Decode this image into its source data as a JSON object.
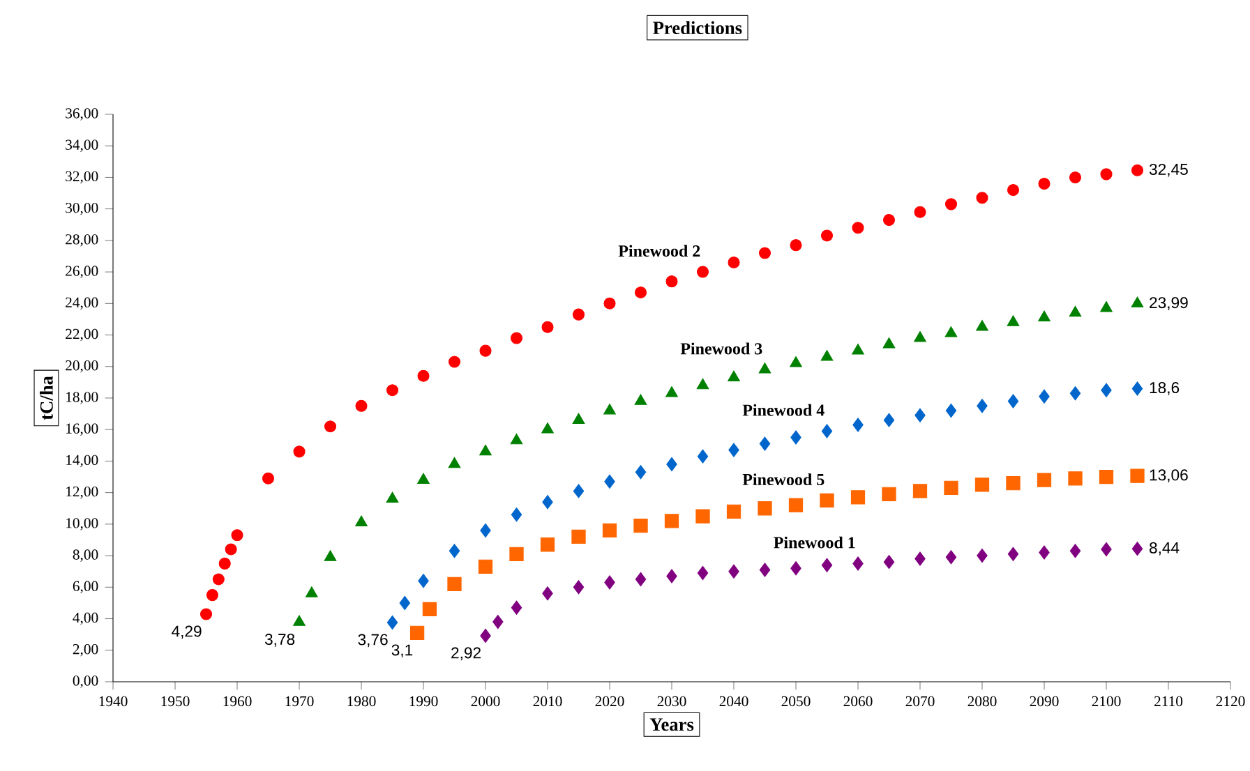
{
  "chart_data": {
    "type": "scatter",
    "title": "Predictions",
    "xlabel": "Years",
    "ylabel": "tC/ha",
    "xlim": [
      1940,
      2120
    ],
    "xticks": [
      1940,
      1950,
      1960,
      1970,
      1980,
      1990,
      2000,
      2010,
      2020,
      2030,
      2040,
      2050,
      2060,
      2070,
      2080,
      2090,
      2100,
      2110,
      2120
    ],
    "ylim": [
      0,
      36
    ],
    "yticks": [
      {
        "value": 0,
        "label": "0,00"
      },
      {
        "value": 2,
        "label": "2,00"
      },
      {
        "value": 4,
        "label": "4,00"
      },
      {
        "value": 6,
        "label": "6,00"
      },
      {
        "value": 8,
        "label": "8,00"
      },
      {
        "value": 10,
        "label": "10,00"
      },
      {
        "value": 12,
        "label": "12,00"
      },
      {
        "value": 14,
        "label": "14,00"
      },
      {
        "value": 16,
        "label": "16,00"
      },
      {
        "value": 18,
        "label": "18,00"
      },
      {
        "value": 20,
        "label": "20,00"
      },
      {
        "value": 22,
        "label": "22,00"
      },
      {
        "value": 24,
        "label": "24,00"
      },
      {
        "value": 26,
        "label": "26,00"
      },
      {
        "value": 28,
        "label": "28,00"
      },
      {
        "value": 30,
        "label": "30,00"
      },
      {
        "value": 32,
        "label": "32,00"
      },
      {
        "value": 34,
        "label": "34,00"
      },
      {
        "value": 36,
        "label": "36,00"
      }
    ],
    "grid": false,
    "legend": false,
    "series": [
      {
        "name": "Pinewood 2",
        "color": "#ff0000",
        "marker": "circle",
        "x": [
          1955,
          1956,
          1957,
          1958,
          1959,
          1960,
          1965,
          1970,
          1975,
          1980,
          1985,
          1990,
          1995,
          2000,
          2005,
          2010,
          2015,
          2020,
          2025,
          2030,
          2035,
          2040,
          2045,
          2050,
          2055,
          2060,
          2065,
          2070,
          2075,
          2080,
          2085,
          2090,
          2095,
          2100,
          2105
        ],
        "values": [
          4.29,
          5.5,
          6.5,
          7.5,
          8.4,
          9.3,
          12.9,
          14.6,
          16.2,
          17.5,
          18.5,
          19.4,
          20.3,
          21.0,
          21.8,
          22.5,
          23.3,
          24.0,
          24.7,
          25.4,
          26.0,
          26.6,
          27.2,
          27.7,
          28.3,
          28.8,
          29.3,
          29.8,
          30.3,
          30.7,
          31.2,
          31.6,
          32.0,
          32.2,
          32.45
        ],
        "value_labels": [
          "4,29",
          null,
          null,
          null,
          null,
          null,
          null,
          null,
          null,
          null,
          null,
          null,
          null,
          null,
          null,
          null,
          null,
          null,
          null,
          null,
          null,
          null,
          null,
          null,
          null,
          null,
          null,
          null,
          null,
          null,
          null,
          null,
          null,
          null,
          "32,45"
        ]
      },
      {
        "name": "Pinewood 3",
        "color": "#008000",
        "marker": "triangle",
        "x": [
          1970,
          1972,
          1975,
          1980,
          1985,
          1990,
          1995,
          2000,
          2005,
          2010,
          2015,
          2020,
          2025,
          2030,
          2035,
          2040,
          2045,
          2050,
          2055,
          2060,
          2065,
          2070,
          2075,
          2080,
          2085,
          2090,
          2095,
          2100,
          2105
        ],
        "values": [
          3.78,
          5.6,
          7.9,
          10.1,
          11.6,
          12.8,
          13.8,
          14.6,
          15.3,
          16.0,
          16.6,
          17.2,
          17.8,
          18.3,
          18.8,
          19.3,
          19.8,
          20.2,
          20.6,
          21.0,
          21.4,
          21.8,
          22.1,
          22.5,
          22.8,
          23.1,
          23.4,
          23.7,
          23.99
        ],
        "value_labels": [
          "3,78",
          null,
          null,
          null,
          null,
          null,
          null,
          null,
          null,
          null,
          null,
          null,
          null,
          null,
          null,
          null,
          null,
          null,
          null,
          null,
          null,
          null,
          null,
          null,
          null,
          null,
          null,
          null,
          "23,99"
        ]
      },
      {
        "name": "Pinewood 4",
        "color": "#0066cc",
        "marker": "diamond",
        "x": [
          1985,
          1987,
          1990,
          1995,
          2000,
          2005,
          2010,
          2015,
          2020,
          2025,
          2030,
          2035,
          2040,
          2045,
          2050,
          2055,
          2060,
          2065,
          2070,
          2075,
          2080,
          2085,
          2090,
          2095,
          2100,
          2105
        ],
        "values": [
          3.76,
          5.0,
          6.4,
          8.3,
          9.6,
          10.6,
          11.4,
          12.1,
          12.7,
          13.3,
          13.8,
          14.3,
          14.7,
          15.1,
          15.5,
          15.9,
          16.3,
          16.6,
          16.9,
          17.2,
          17.5,
          17.8,
          18.1,
          18.3,
          18.5,
          18.6
        ],
        "value_labels": [
          "3,76",
          null,
          null,
          null,
          null,
          null,
          null,
          null,
          null,
          null,
          null,
          null,
          null,
          null,
          null,
          null,
          null,
          null,
          null,
          null,
          null,
          null,
          null,
          null,
          null,
          "18,6"
        ]
      },
      {
        "name": "Pinewood 5",
        "color": "#ff6600",
        "marker": "square",
        "x": [
          1989,
          1991,
          1995,
          2000,
          2005,
          2010,
          2015,
          2020,
          2025,
          2030,
          2035,
          2040,
          2045,
          2050,
          2055,
          2060,
          2065,
          2070,
          2075,
          2080,
          2085,
          2090,
          2095,
          2100,
          2105
        ],
        "values": [
          3.1,
          4.6,
          6.2,
          7.3,
          8.1,
          8.7,
          9.2,
          9.6,
          9.9,
          10.2,
          10.5,
          10.8,
          11.0,
          11.2,
          11.5,
          11.7,
          11.9,
          12.1,
          12.3,
          12.5,
          12.6,
          12.8,
          12.9,
          13.0,
          13.06
        ],
        "value_labels": [
          "3,1",
          null,
          null,
          null,
          null,
          null,
          null,
          null,
          null,
          null,
          null,
          null,
          null,
          null,
          null,
          null,
          null,
          null,
          null,
          null,
          null,
          null,
          null,
          null,
          "13,06"
        ]
      },
      {
        "name": "Pinewood 1",
        "color": "#800080",
        "marker": "diamond",
        "x": [
          2000,
          2002,
          2005,
          2010,
          2015,
          2020,
          2025,
          2030,
          2035,
          2040,
          2045,
          2050,
          2055,
          2060,
          2065,
          2070,
          2075,
          2080,
          2085,
          2090,
          2095,
          2100,
          2105
        ],
        "values": [
          2.92,
          3.8,
          4.7,
          5.6,
          6.0,
          6.3,
          6.5,
          6.7,
          6.9,
          7.0,
          7.1,
          7.2,
          7.4,
          7.5,
          7.6,
          7.8,
          7.9,
          8.0,
          8.1,
          8.2,
          8.3,
          8.4,
          8.44
        ],
        "value_labels": [
          "2,92",
          null,
          null,
          null,
          null,
          null,
          null,
          null,
          null,
          null,
          null,
          null,
          null,
          null,
          null,
          null,
          null,
          null,
          null,
          null,
          null,
          null,
          "8,44"
        ]
      }
    ]
  }
}
